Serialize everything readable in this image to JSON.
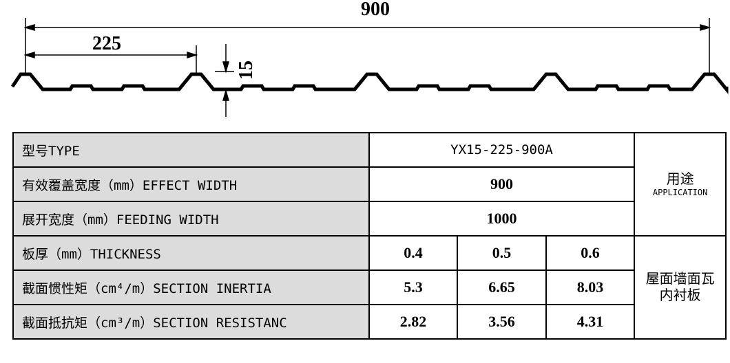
{
  "dimensions": {
    "overall_width": "900",
    "pitch": "225",
    "rib_height": "15"
  },
  "table": {
    "rows": [
      [
        "型号TYPE",
        "YX15-225-900A"
      ],
      [
        "有效覆盖宽度（mm）EFFECT WIDTH",
        "900"
      ],
      [
        "展开宽度（mm）FEEDING WIDTH",
        "1000"
      ],
      [
        "板厚（mm）THICKNESS",
        "0.4",
        "0.5",
        "0.6"
      ],
      [
        "截面惯性矩（cm⁴/m）SECTION INERTIA",
        "5.3",
        "6.65",
        "8.03"
      ],
      [
        "截面抵抗矩（cm³/m）SECTION RESISTANC",
        "2.82",
        "3.56",
        "4.31"
      ]
    ],
    "application": {
      "label": "用途",
      "label_en": "APPLICATION",
      "value_lines": [
        "屋面墙面瓦",
        "内衬板"
      ]
    }
  }
}
